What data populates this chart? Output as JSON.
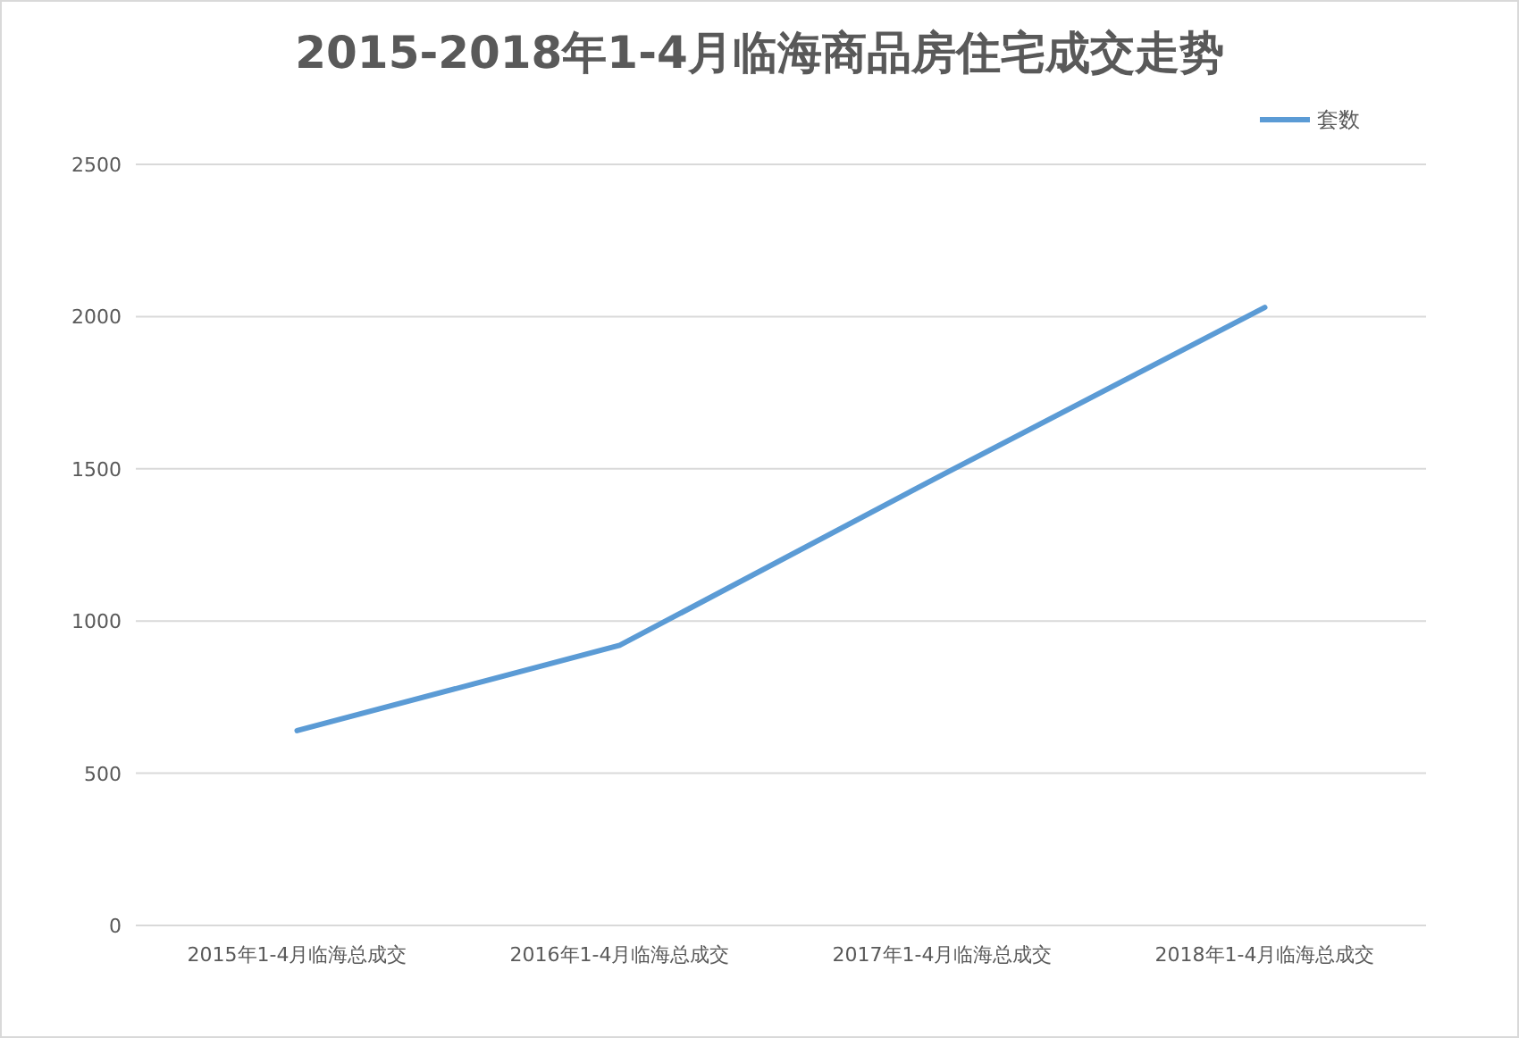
{
  "chart_data": {
    "type": "line",
    "title": "2015-2018年1-4月临海商品房住宅成交走势",
    "categories": [
      "2015年1-4月临海总成交",
      "2016年1-4月临海总成交",
      "2017年1-4月临海总成交",
      "2018年1-4月临海总成交"
    ],
    "series": [
      {
        "name": "套数",
        "color": "#5b9bd5",
        "values": [
          640,
          920,
          1480,
          2030
        ]
      }
    ],
    "ylim": [
      0,
      2500
    ],
    "yticks": [
      0,
      500,
      1000,
      1500,
      2000,
      2500
    ],
    "grid": "y",
    "legend": "top right"
  }
}
